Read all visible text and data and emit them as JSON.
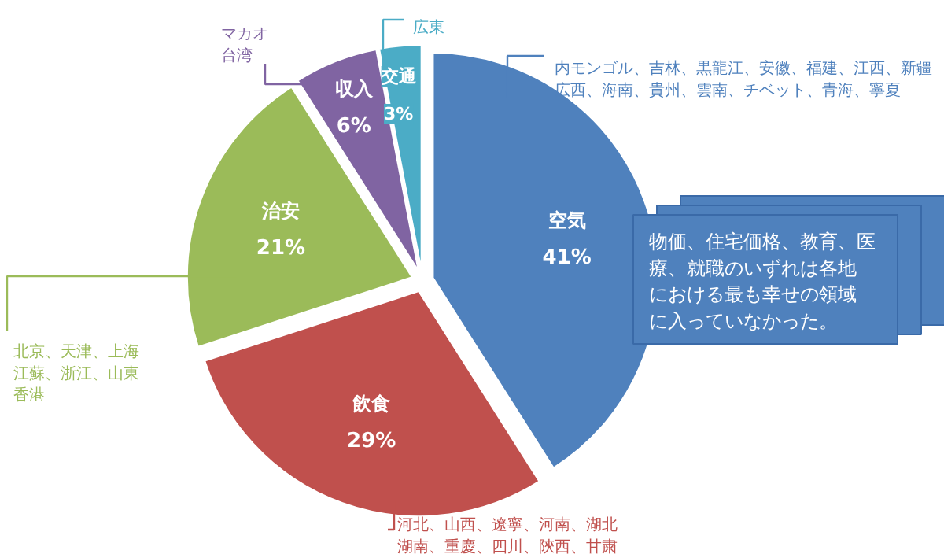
{
  "chart_data": {
    "type": "pie",
    "categories": [
      "空気",
      "飲食",
      "治安",
      "収入",
      "交通"
    ],
    "values": [
      41,
      29,
      21,
      6,
      3
    ],
    "value_labels": [
      "41%",
      "29%",
      "21%",
      "6%",
      "3%"
    ],
    "colors": [
      "#4f81bd",
      "#c0504d",
      "#9bbb59",
      "#8064a2",
      "#4bacc6"
    ],
    "annotations": [
      "内モンゴル、吉林、黒龍江、安徽、福建、江西、新疆広西、海南、貴州、雲南、チベット、青海、寧夏",
      "河北、山西、遼寧、河南、湖北湖南、重慶、四川、陝西、甘粛",
      "北京、天津、上海江蘇、浙江、山東香港",
      "マカオ台湾",
      "広東",
      "物価、住宅価格、教育、医療、就職のいずれは各地における最も幸せの領域に入っていなかった。"
    ]
  }
}
